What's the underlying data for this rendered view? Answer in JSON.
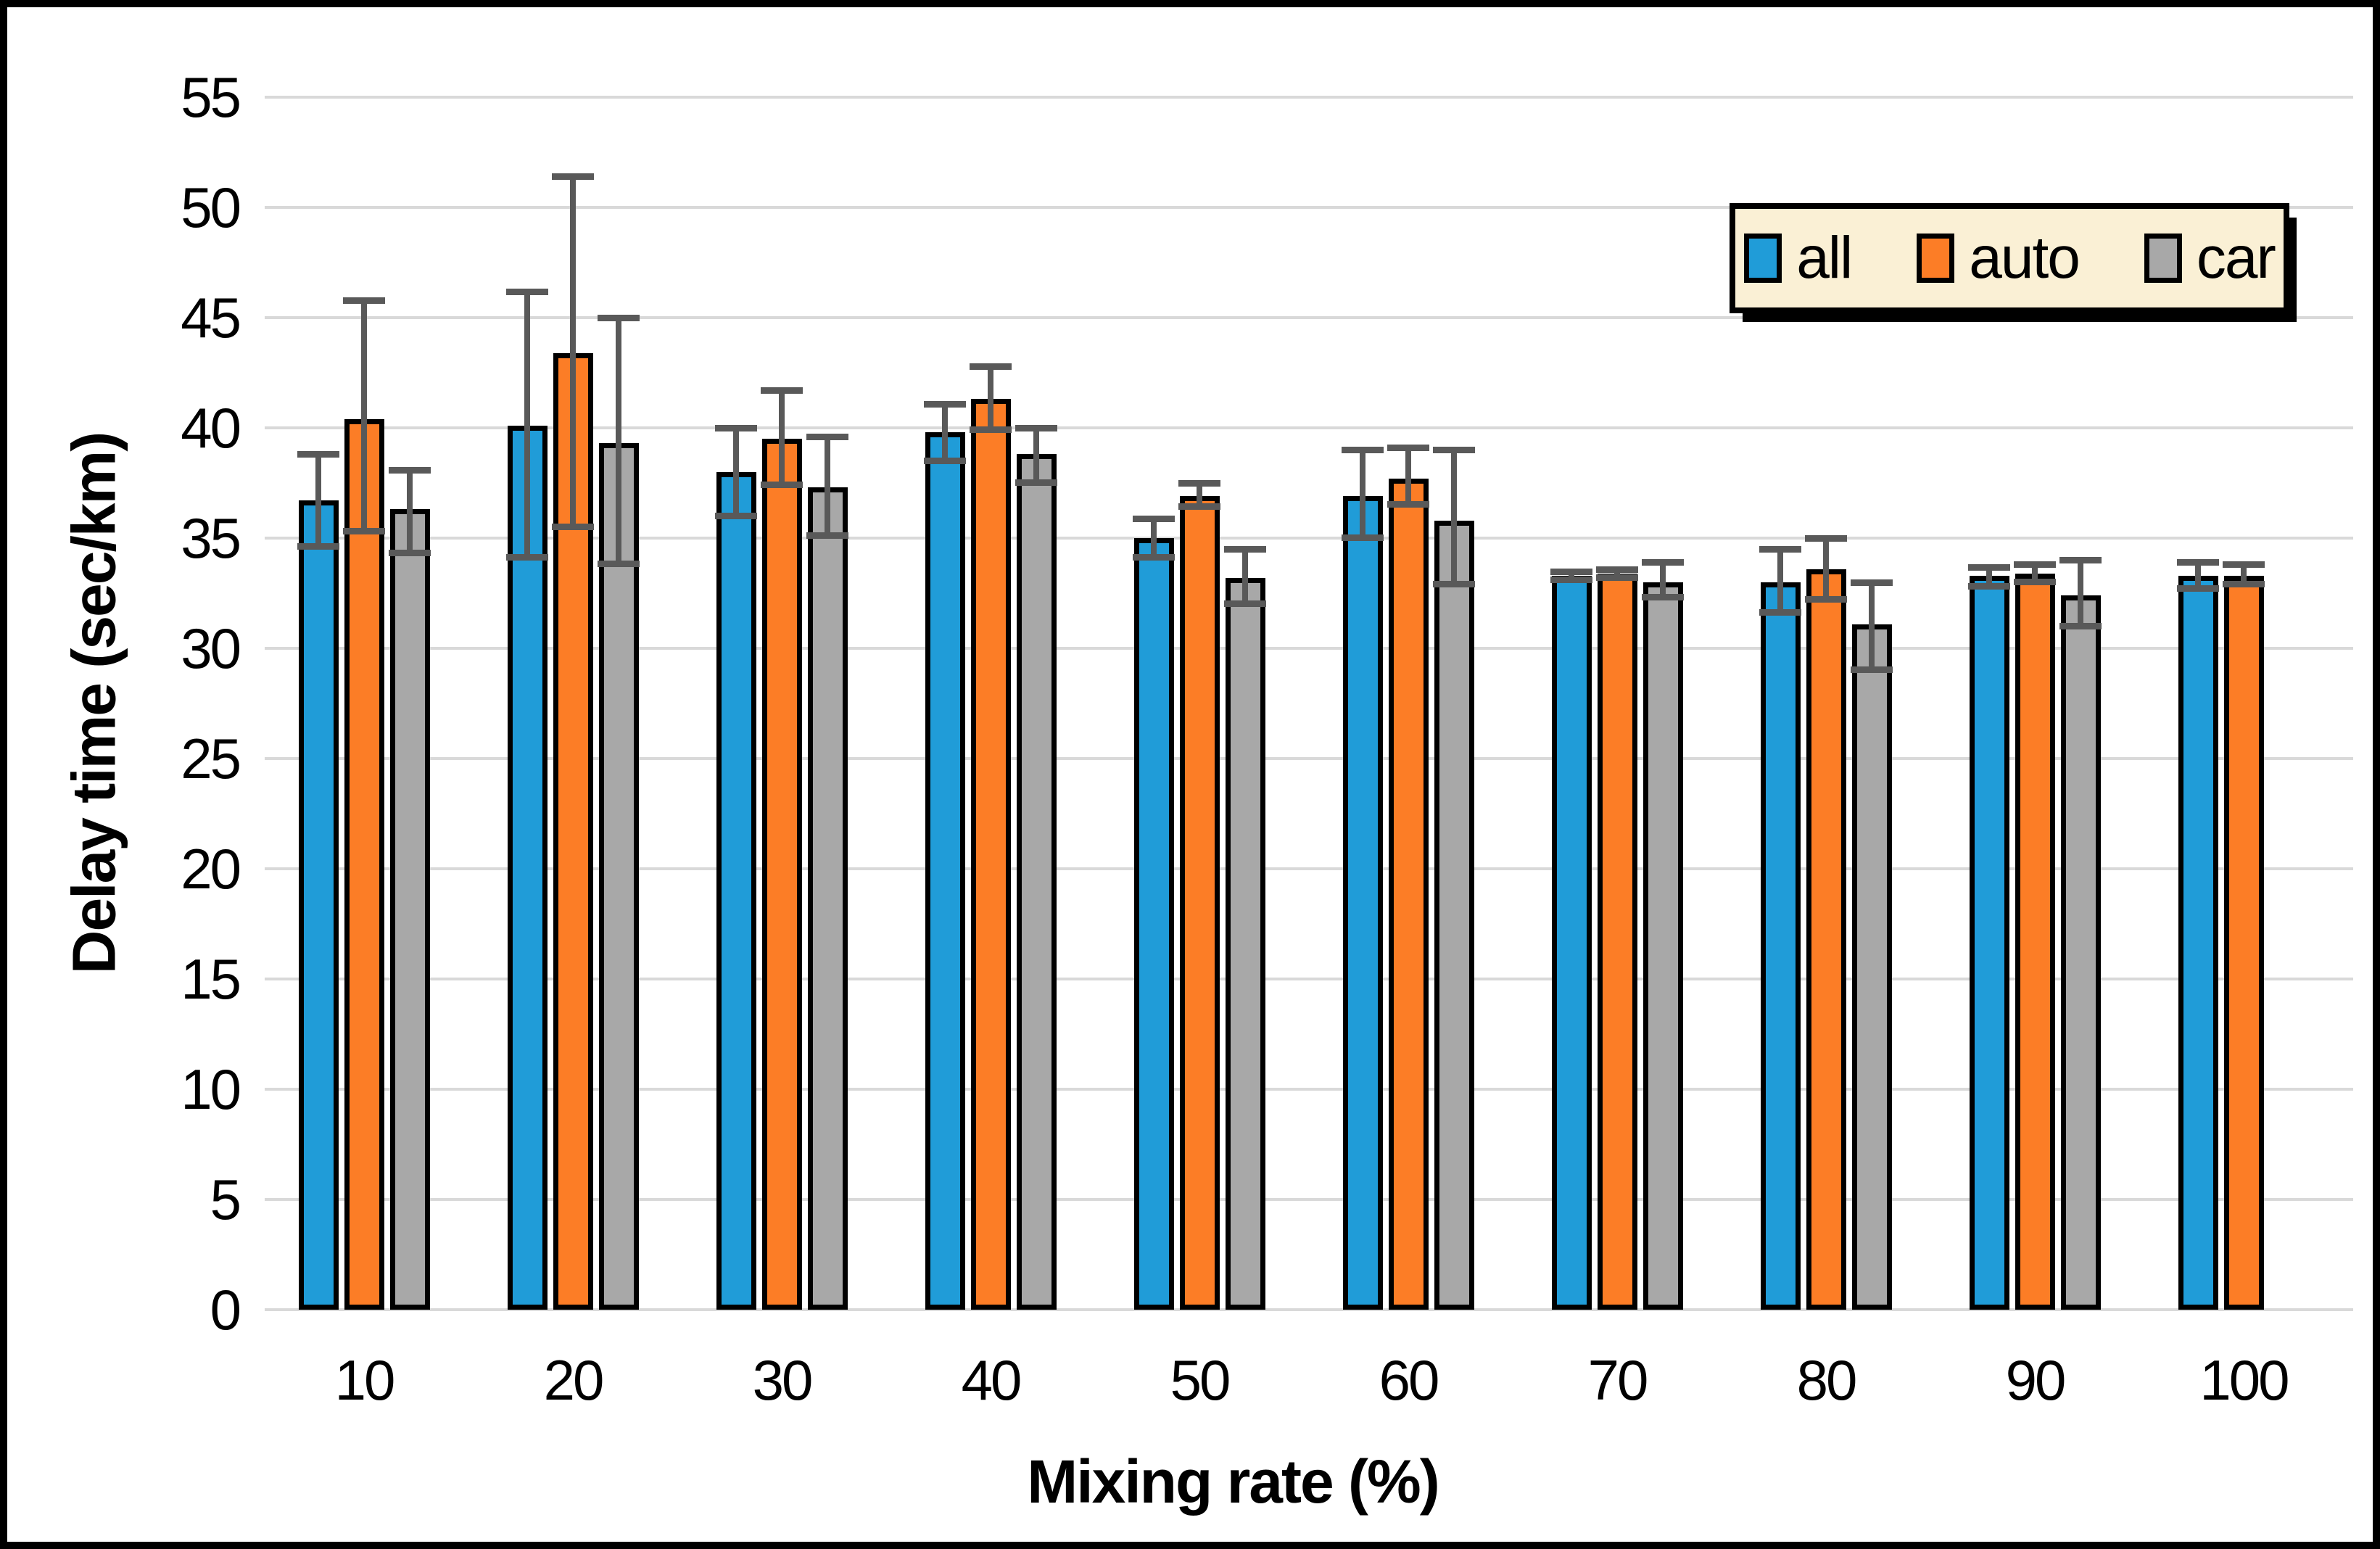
{
  "page": {
    "background": "#FFFFFF",
    "frame_border_color": "#000000"
  },
  "chart_data": {
    "type": "bar",
    "title": "",
    "xlabel": "Mixing rate (%)",
    "ylabel": "Delay time (sec/km)",
    "categories": [
      10,
      20,
      30,
      40,
      50,
      60,
      70,
      80,
      90,
      100
    ],
    "ylim": [
      0,
      55
    ],
    "ytick_step": 5,
    "yticks": [
      0,
      5,
      10,
      15,
      20,
      25,
      30,
      35,
      40,
      45,
      50,
      55
    ],
    "grid": true,
    "gridline_color": "#D9D9D9",
    "error_bar_color": "#595959",
    "legend_position": "top-right",
    "legend": {
      "labels": [
        "all",
        "auto",
        "car"
      ],
      "background": "#FAF0D5",
      "border_color": "#000000"
    },
    "series": [
      {
        "name": "all",
        "color": "#209CD8",
        "values": [
          36.7,
          40.1,
          38.0,
          39.8,
          35.0,
          36.9,
          33.3,
          33.0,
          33.3,
          33.3
        ],
        "err_min": [
          34.6,
          34.1,
          36.0,
          38.5,
          34.1,
          35.0,
          33.1,
          31.6,
          32.8,
          32.7
        ],
        "err_max": [
          38.8,
          46.2,
          40.0,
          41.1,
          35.9,
          39.0,
          33.5,
          34.5,
          33.7,
          33.9
        ]
      },
      {
        "name": "auto",
        "color": "#FC7D26",
        "values": [
          40.4,
          43.4,
          39.5,
          41.3,
          36.9,
          37.7,
          33.4,
          33.6,
          33.4,
          33.3
        ],
        "err_min": [
          35.3,
          35.5,
          37.4,
          39.9,
          36.4,
          36.5,
          33.2,
          32.2,
          33.0,
          32.9
        ],
        "err_max": [
          45.8,
          51.4,
          41.7,
          42.8,
          37.5,
          39.1,
          33.6,
          35.0,
          33.8,
          33.8
        ]
      },
      {
        "name": "car",
        "color": "#A8A8A8",
        "values": [
          36.3,
          39.3,
          37.3,
          38.8,
          33.2,
          35.8,
          33.0,
          31.1,
          32.4,
          null
        ],
        "err_min": [
          34.3,
          33.8,
          35.1,
          37.5,
          32.0,
          32.9,
          32.3,
          29.0,
          31.0,
          null
        ],
        "err_max": [
          38.1,
          45.0,
          39.6,
          40.0,
          34.5,
          39.0,
          33.9,
          33.0,
          34.0,
          null
        ]
      }
    ]
  }
}
